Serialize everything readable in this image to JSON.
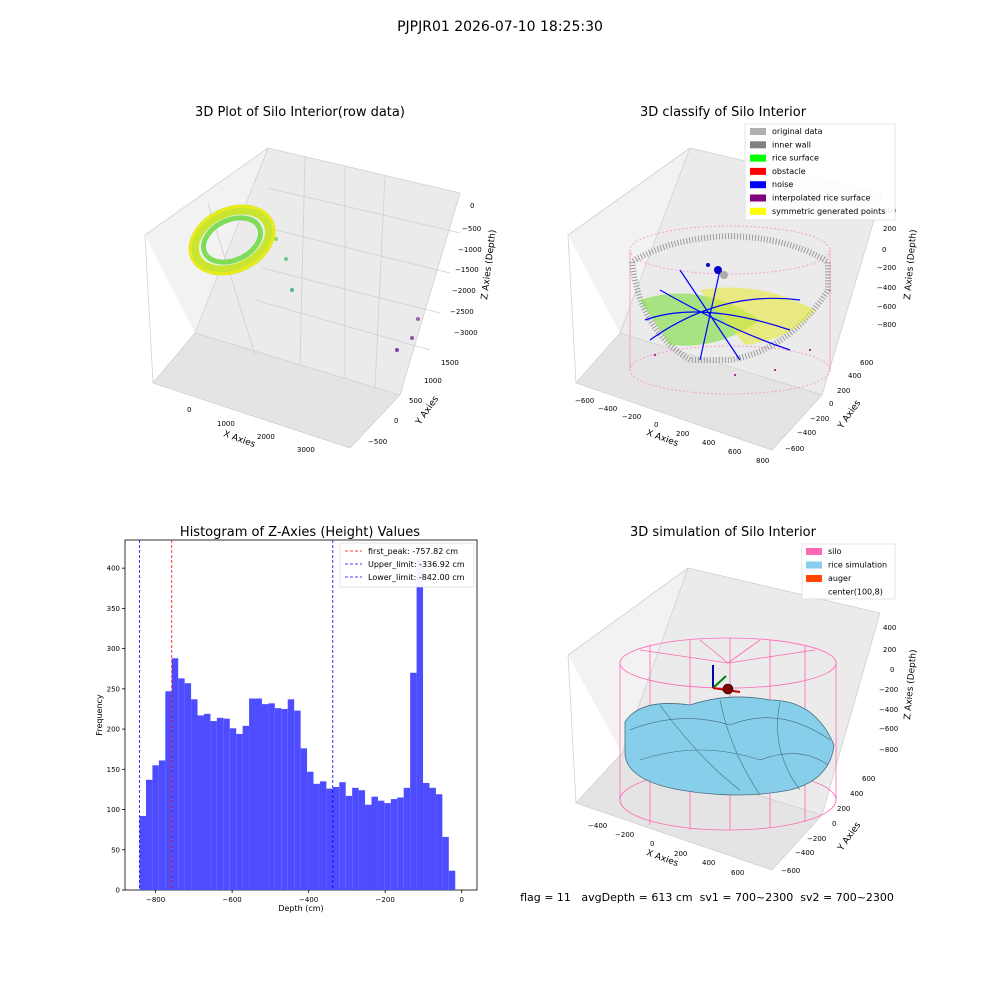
{
  "figure": {
    "suptitle": "PJPJR01 2026-07-10 18:25:30"
  },
  "colors": {
    "green": "#00ff00",
    "blue": "#0000ff",
    "gray": "#808080",
    "lightgray": "#b0b0b0",
    "red": "#ff0000",
    "purple": "#800080",
    "yellow": "#ffff00",
    "pink": "#ff69b4",
    "skyblue": "#87ceeb",
    "orange": "#ff4500",
    "hist": "#4d4dff"
  },
  "panels": {
    "raw": {
      "title": "3D Plot of Silo Interior(row data)",
      "xlabel": "X Axies",
      "ylabel": "Y Axies",
      "zlabel": "Z Axies (Depth)",
      "xticks": [
        "0",
        "1000",
        "2000",
        "3000"
      ],
      "yticks": [
        "−500",
        "0",
        "500",
        "1000",
        "1500"
      ],
      "zticks": [
        "0",
        "−500",
        "−1000",
        "−1500",
        "−2000",
        "−2500",
        "−3000"
      ]
    },
    "classify": {
      "title": "3D classify of Silo Interior",
      "xlabel": "X Axies",
      "ylabel": "Y Axies",
      "zlabel": "Z Axies (Depth)",
      "xticks": [
        "−600",
        "−400",
        "−200",
        "0",
        "200",
        "400",
        "600",
        "800"
      ],
      "yticks": [
        "−600",
        "−400",
        "−200",
        "0",
        "200",
        "400",
        "600"
      ],
      "zticks": [
        "400",
        "200",
        "0",
        "−200",
        "−400",
        "−600",
        "−800"
      ],
      "legend": [
        {
          "label": "original data",
          "color": "#b0b0b0"
        },
        {
          "label": "inner wall",
          "color": "#808080"
        },
        {
          "label": "rice surface",
          "color": "#00ff00"
        },
        {
          "label": "obstacle",
          "color": "#ff0000"
        },
        {
          "label": "noise",
          "color": "#0000ff"
        },
        {
          "label": "interpolated rice surface",
          "color": "#800080"
        },
        {
          "label": "symmetric generated points",
          "color": "#ffff00"
        }
      ]
    },
    "simulation": {
      "title": "3D simulation of Silo Interior",
      "xlabel": "X Axies",
      "ylabel": "Y Axies",
      "zlabel": "Z Axies (Depth)",
      "xticks": [
        "−400",
        "−200",
        "0",
        "200",
        "400",
        "600"
      ],
      "yticks": [
        "−600",
        "−400",
        "−200",
        "0",
        "200",
        "400",
        "600"
      ],
      "zticks": [
        "400",
        "200",
        "0",
        "−200",
        "−400",
        "−600",
        "−800"
      ],
      "legend": [
        {
          "label": "silo",
          "color": "#ff69b4"
        },
        {
          "label": "rice simulation",
          "color": "#87ceeb"
        },
        {
          "label": "auger",
          "color": "#ff4500"
        },
        {
          "label": "center(100,8)",
          "color": ""
        }
      ],
      "status": "flag = 11   avgDepth = 613 cm  sv1 = 700~2300  sv2 = 700~2300"
    }
  },
  "chart_data": {
    "type": "bar",
    "title": "Histogram of Z-Axies (Height) Values",
    "xlabel": "Depth (cm)",
    "ylabel": "Frequency",
    "xlim": [
      -880,
      40
    ],
    "ylim": [
      0,
      435
    ],
    "bin_start": -842,
    "bin_width": 16.84,
    "values": [
      92,
      137,
      155,
      161,
      247,
      288,
      263,
      257,
      237,
      217,
      219,
      210,
      214,
      213,
      201,
      194,
      204,
      238,
      238,
      231,
      232,
      226,
      225,
      237,
      223,
      176,
      147,
      132,
      135,
      126,
      128,
      134,
      117,
      127,
      124,
      106,
      116,
      111,
      108,
      113,
      115,
      127,
      270,
      412,
      133,
      127,
      119,
      66,
      24
    ],
    "xticks": [
      -800,
      -600,
      -400,
      -200,
      0
    ],
    "yticks": [
      0,
      50,
      100,
      150,
      200,
      250,
      300,
      350,
      400
    ],
    "lines": [
      {
        "label": "first_peak: -757.82 cm",
        "x": -757.82,
        "color": "#ff0000"
      },
      {
        "label": "Upper_limit: -336.92 cm",
        "x": -336.92,
        "color": "#0000ff"
      },
      {
        "label": "Lower_limit: -842.00 cm",
        "x": -842.0,
        "color": "#0000ff"
      }
    ]
  }
}
